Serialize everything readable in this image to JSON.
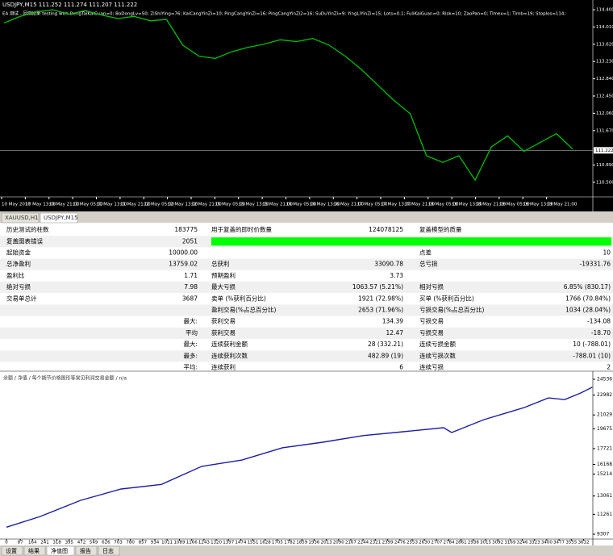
{
  "price_chart": {
    "title": "USDJPY,M15  111.252 111.274 111.207 111.222",
    "info": "EA 测试 - 回测结果 testing with DengTaiKaiGuan=0; BoDongLv=50; ZiShiYing=76; KaiCangYinZi=10; PingCangYinZi=16; PingCangYinZi2=16; SuDuYinZi=9; YingLiYinZi=15; Lots=0.1; FuliKaiGuan=0; Risk=10; ZaoPan=0; Timex=1; Timb=19; Stoplos=114;",
    "ylim": [
      110.17,
      114.62
    ],
    "yticks": [
      {
        "value": 114.4,
        "label": "114.400"
      },
      {
        "value": 114.01,
        "label": "114.010"
      },
      {
        "value": 113.62,
        "label": "113.620"
      },
      {
        "value": 113.23,
        "label": "113.230"
      },
      {
        "value": 112.84,
        "label": "112.840"
      },
      {
        "value": 112.45,
        "label": "112.450"
      },
      {
        "value": 112.06,
        "label": "112.060"
      },
      {
        "value": 111.67,
        "label": "111.670"
      },
      {
        "value": 110.89,
        "label": "110.890"
      },
      {
        "value": 110.5,
        "label": "110.500"
      }
    ],
    "current": {
      "value": 111.222,
      "label": "111.222"
    },
    "values": [
      114.1,
      114.25,
      114.35,
      114.4,
      114.3,
      114.38,
      114.28,
      114.2,
      114.25,
      114.15,
      114.18,
      113.6,
      113.35,
      113.3,
      113.45,
      113.55,
      113.62,
      113.72,
      113.68,
      113.75,
      113.6,
      113.35,
      113.05,
      112.7,
      112.35,
      112.05,
      111.1,
      110.95,
      111.1,
      110.55,
      111.3,
      111.55,
      111.2,
      111.4,
      111.6,
      111.25
    ],
    "time_labels": [
      "10 May 2017",
      "10 May 13:00",
      "10 May 21:00",
      "11 May 05:00",
      "11 May 13:00",
      "11 May 21:00",
      "12 May 05:00",
      "12 May 13:00",
      "12 May 21:00",
      "15 May 05:00",
      "15 May 13:00",
      "15 May 21:00",
      "16 May 05:00",
      "16 May 13:00",
      "16 May 21:00",
      "17 May 05:00",
      "17 May 13:00",
      "17 May 21:00",
      "18 May 05:00",
      "18 May 13:00",
      "18 May 21:00",
      "19 May 05:00",
      "19 May 13:00",
      "19 May 21:00"
    ]
  },
  "symbol_tabs": [
    "XAUUSD,H1",
    "USDJPY,M15"
  ],
  "report": {
    "quality_color": "#00ff00",
    "rows": [
      {
        "label1": "历史测试的柱数",
        "value1": "183775",
        "label2": "用于复盖的即时价数量",
        "value2": "124078125",
        "label3": "复盖模型的质量"
      },
      {
        "label1": "复盖图表错误",
        "value1": "2051",
        "quality_bar": true
      },
      {
        "label1": "起始资金",
        "value1": "10000.00",
        "label3": "点差",
        "value3": "10"
      },
      {
        "label1": "总净盈利",
        "value1": "13759.02",
        "label2": "总获利",
        "value2": "33090.78",
        "label3": "总亏损",
        "value3": "-19331.76"
      },
      {
        "label1": "盈利比",
        "value1": "1.71",
        "label2": "预期盈利",
        "value2": "3.73"
      },
      {
        "label1": "绝对亏损",
        "value1": "7.98",
        "label2": "最大亏损",
        "value2": "1063.57 (5.21%)",
        "label3": "相对亏损",
        "value3": "6.85% (830.17)"
      },
      {
        "label1": "交易单总计",
        "value1": "3687",
        "label2": "卖单 (%获利百分比)",
        "value2": "1921 (72.98%)",
        "label3": "买单 (%获利百分比)",
        "value3": "1766 (70.84%)"
      },
      {
        "label2": "盈利交易(%占总百分比)",
        "value2": "2653 (71.96%)",
        "label3": "亏损交易(%占总百分比)",
        "value3": "1034 (28.04%)"
      },
      {
        "label1": "最大:",
        "label2": "获利交易",
        "value2": "134.39",
        "label3": "亏损交易",
        "value3": "-134.08"
      },
      {
        "label1": "平均",
        "label2": "获利交易",
        "value2": "12.47",
        "label3": "亏损交易",
        "value3": "-18.70"
      },
      {
        "label1": "最大:",
        "label2": "连续获利金额",
        "value2": "28 (332.21)",
        "label3": "连续亏损金额",
        "value3": "10 (-788.01)"
      },
      {
        "label1": "最多:",
        "label2": "连续获利次数",
        "value2": "482.89 (19)",
        "label3": "连续亏损次数",
        "value3": "-788.01 (10)"
      },
      {
        "label1": "平均:",
        "label2": "连续获利",
        "value2": "6",
        "label3": "连续亏损",
        "value3": "2"
      }
    ]
  },
  "equity_chart": {
    "legend": "余额 / 净值 / 每个期节价格图形等常见利润交易金额 / n/a",
    "color": "#1d1da6",
    "ylim": [
      8831,
      25091
    ],
    "yticks": [
      24536,
      22982,
      21029,
      19675,
      17721,
      16168,
      15214,
      13061,
      11261,
      9307
    ],
    "xlim": [
      0,
      3690
    ],
    "xticks": [
      0,
      87,
      164,
      241,
      318,
      395,
      472,
      549,
      626,
      703,
      780,
      857,
      934,
      1011,
      1089,
      1166,
      1243,
      1320,
      1397,
      1474,
      1551,
      1628,
      1705,
      1782,
      1859,
      1936,
      2013,
      2090,
      2167,
      2244,
      2321,
      2399,
      2476,
      2553,
      2630,
      2707,
      2784,
      2861,
      2938,
      3015,
      3092,
      3169,
      3246,
      3323,
      3400,
      3477,
      3555,
      3632
    ],
    "x": [
      0,
      213,
      467,
      721,
      975,
      1228,
      1482,
      1736,
      1990,
      2244,
      2497,
      2751,
      2802,
      3005,
      3259,
      3411,
      3513,
      3614,
      3687
    ],
    "values": [
      10000,
      11050,
      12640,
      13750,
      14200,
      15970,
      16600,
      17800,
      18350,
      19000,
      19380,
      19780,
      19300,
      20570,
      21760,
      22700,
      22540,
      23190,
      23759
    ]
  },
  "bottom_tabs": [
    "设置",
    "结果",
    "净值图",
    "报告",
    "日志"
  ]
}
